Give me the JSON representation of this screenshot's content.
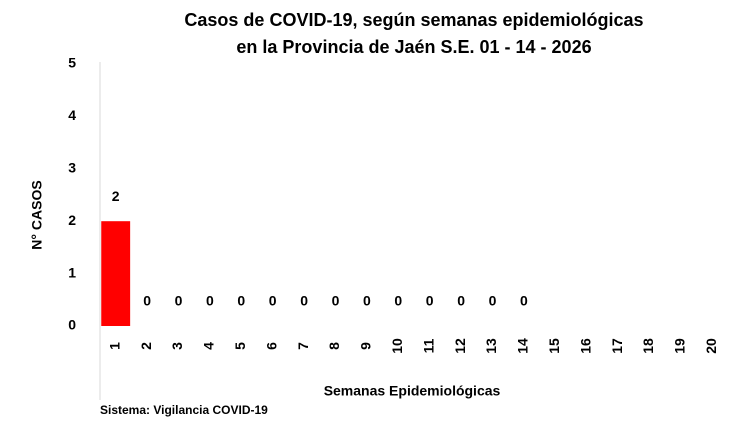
{
  "chart_data": {
    "type": "bar",
    "title": [
      "Casos de COVID-19, según semanas epidemiológicas",
      "en la Provincia de Jaén S.E. 01 - 14 - 2026"
    ],
    "y_label": "N° CASOS",
    "x_label": "Semanas Epidemiológicas",
    "source": "Sistema: Vigilancia COVID-19",
    "categories": [
      "1",
      "2",
      "3",
      "4",
      "5",
      "6",
      "7",
      "8",
      "9",
      "10",
      "11",
      "12",
      "13",
      "14",
      "15",
      "16",
      "17",
      "18",
      "19",
      "20"
    ],
    "values": [
      2,
      0,
      0,
      0,
      0,
      0,
      0,
      0,
      0,
      0,
      0,
      0,
      0,
      0,
      null,
      null,
      null,
      null,
      null,
      null
    ],
    "color": "#ff0000",
    "ylim": [
      0,
      5
    ],
    "yticks": [
      0,
      1,
      2,
      3,
      4,
      5
    ],
    "grid": false
  }
}
